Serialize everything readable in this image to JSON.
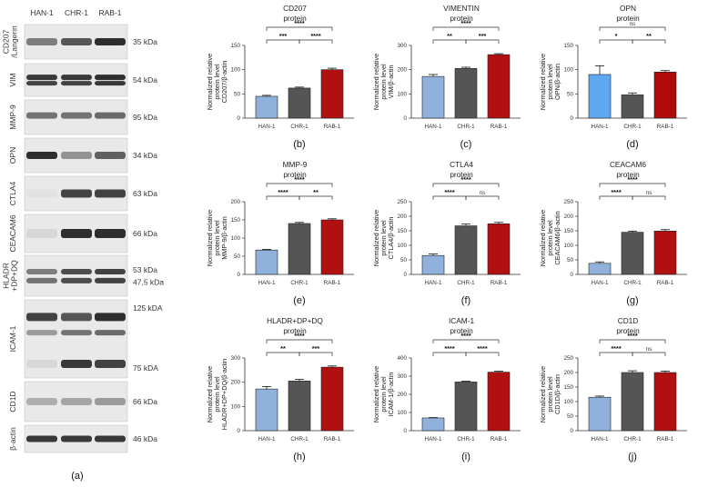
{
  "colors": {
    "HAN-1": "#8fb1dc",
    "CHR-1": "#555555",
    "RAB-1": "#b01010",
    "RAB-1-d": "#ae0a0a",
    "HAN-1-d": "#5fa9f2"
  },
  "blots": {
    "lanes": [
      "HAN-1",
      "CHR-1",
      "RAB-1"
    ],
    "panel_label": "(a)",
    "rows": [
      {
        "label": "CD207\n/Langerin",
        "kda": [
          "35 kDa"
        ]
      },
      {
        "label": "VIM",
        "kda": [
          "54 kDa"
        ]
      },
      {
        "label": "MMP-9",
        "kda": [
          "95 kDa"
        ]
      },
      {
        "label": "OPN",
        "kda": [
          "34 kDa"
        ]
      },
      {
        "label": "CTLA4",
        "kda": [
          "63 kDa"
        ]
      },
      {
        "label": "CEACAM6",
        "kda": [
          "66 kDa"
        ]
      },
      {
        "label": "HLADR\n+DP+DQ",
        "kda": [
          "53 kDa",
          "47,5 kDa"
        ]
      },
      {
        "label": "ICAM-1",
        "kda": [
          "125 kDA",
          "75 kDA"
        ]
      },
      {
        "label": "CD1D",
        "kda": [
          "66 kDa"
        ]
      },
      {
        "label": "β-actin",
        "kda": [
          "46 kDa"
        ]
      }
    ]
  },
  "chart_data": [
    {
      "type": "bar",
      "panel": "(b)",
      "title": [
        "CD207",
        "protein"
      ],
      "ylabel": [
        "Normalized relative",
        "protein level",
        "CD207/β-actin"
      ],
      "categories": [
        "HAN-1",
        "CHR-1",
        "RAB-1"
      ],
      "values": [
        45,
        62,
        100
      ],
      "errors": [
        2,
        2,
        3
      ],
      "ylim": [
        0,
        150
      ],
      "yticks": [
        0,
        50,
        100,
        150
      ],
      "brackets": [
        {
          "from": 0,
          "to": 2,
          "label": "****",
          "level": 2
        },
        {
          "from": 0,
          "to": 1,
          "label": "***",
          "level": 1
        },
        {
          "from": 1,
          "to": 2,
          "label": "****",
          "level": 1
        }
      ]
    },
    {
      "type": "bar",
      "panel": "(c)",
      "title": [
        "VIMENTIN",
        "protein"
      ],
      "ylabel": [
        "Normalized relative",
        "protein level",
        "VIM/β-actin"
      ],
      "categories": [
        "HAN-1",
        "CHR-1",
        "RAB-1"
      ],
      "values": [
        172,
        205,
        262
      ],
      "errors": [
        8,
        5,
        4
      ],
      "ylim": [
        0,
        300
      ],
      "yticks": [
        0,
        100,
        200,
        300
      ],
      "brackets": [
        {
          "from": 0,
          "to": 2,
          "label": "****",
          "level": 2
        },
        {
          "from": 0,
          "to": 1,
          "label": "**",
          "level": 1
        },
        {
          "from": 1,
          "to": 2,
          "label": "***",
          "level": 1
        }
      ]
    },
    {
      "type": "bar",
      "panel": "(d)",
      "title": [
        "OPN",
        "protein"
      ],
      "ylabel": [
        "Normalized relative",
        "protein level",
        "OPN/β-actin"
      ],
      "categories": [
        "HAN-1",
        "CHR-1",
        "RAB-1"
      ],
      "values": [
        90,
        48,
        95
      ],
      "errors": [
        18,
        4,
        3
      ],
      "ylim": [
        0,
        150
      ],
      "yticks": [
        0,
        50,
        100,
        150
      ],
      "alt_colors": true,
      "brackets": [
        {
          "from": 0,
          "to": 2,
          "label": "ns",
          "level": 2
        },
        {
          "from": 0,
          "to": 1,
          "label": "*",
          "level": 1
        },
        {
          "from": 1,
          "to": 2,
          "label": "**",
          "level": 1
        }
      ]
    },
    {
      "type": "bar",
      "panel": "(e)",
      "title": [
        "MMP-9",
        "protein"
      ],
      "ylabel": [
        "Normalized relative",
        "protein level",
        "MMP-9/β-actin"
      ],
      "categories": [
        "HAN-1",
        "CHR-1",
        "RAB-1"
      ],
      "values": [
        67,
        140,
        150
      ],
      "errors": [
        2,
        3,
        3
      ],
      "ylim": [
        0,
        200
      ],
      "yticks": [
        0,
        50,
        100,
        150,
        200
      ],
      "brackets": [
        {
          "from": 0,
          "to": 2,
          "label": "****",
          "level": 2
        },
        {
          "from": 0,
          "to": 1,
          "label": "****",
          "level": 1
        },
        {
          "from": 1,
          "to": 2,
          "label": "**",
          "level": 1
        }
      ]
    },
    {
      "type": "bar",
      "panel": "(f)",
      "title": [
        "CTLA4",
        "protein"
      ],
      "ylabel": [
        "Normalized relative",
        "protein level",
        "CTLA4/β-actin"
      ],
      "categories": [
        "HAN-1",
        "CHR-1",
        "RAB-1"
      ],
      "values": [
        65,
        167,
        174
      ],
      "errors": [
        5,
        6,
        5
      ],
      "ylim": [
        0,
        250
      ],
      "yticks": [
        0,
        50,
        100,
        150,
        200,
        250
      ],
      "brackets": [
        {
          "from": 0,
          "to": 2,
          "label": "****",
          "level": 2
        },
        {
          "from": 0,
          "to": 1,
          "label": "****",
          "level": 1
        },
        {
          "from": 1,
          "to": 2,
          "label": "ns",
          "level": 1
        }
      ]
    },
    {
      "type": "bar",
      "panel": "(g)",
      "title": [
        "CEACAM6",
        "protein"
      ],
      "ylabel": [
        "Normalized relative",
        "protein level",
        "CEACAM6/β-actin"
      ],
      "categories": [
        "HAN-1",
        "CHR-1",
        "RAB-1"
      ],
      "values": [
        38,
        145,
        149
      ],
      "errors": [
        5,
        4,
        5
      ],
      "ylim": [
        0,
        250
      ],
      "yticks": [
        0,
        50,
        100,
        150,
        200,
        250
      ],
      "brackets": [
        {
          "from": 0,
          "to": 2,
          "label": "****",
          "level": 2
        },
        {
          "from": 0,
          "to": 1,
          "label": "****",
          "level": 1
        },
        {
          "from": 1,
          "to": 2,
          "label": "ns",
          "level": 1
        }
      ]
    },
    {
      "type": "bar",
      "panel": "(h)",
      "title": [
        "HLADR+DP+DQ",
        "protein"
      ],
      "ylabel": [
        "Normalized relative",
        "protein level",
        "HLADR+DP+DQ/β-actin"
      ],
      "categories": [
        "HAN-1",
        "CHR-1",
        "RAB-1"
      ],
      "values": [
        172,
        205,
        262
      ],
      "errors": [
        10,
        7,
        5
      ],
      "ylim": [
        0,
        300
      ],
      "yticks": [
        0,
        100,
        200,
        300
      ],
      "brackets": [
        {
          "from": 0,
          "to": 2,
          "label": "****",
          "level": 2
        },
        {
          "from": 0,
          "to": 1,
          "label": "**",
          "level": 1
        },
        {
          "from": 1,
          "to": 2,
          "label": "***",
          "level": 1
        }
      ]
    },
    {
      "type": "bar",
      "panel": "(i)",
      "title": [
        "ICAM-1",
        "protein"
      ],
      "ylabel": [
        "Normalized relative",
        "protein level",
        "ICAM-1/β-actin"
      ],
      "categories": [
        "HAN-1",
        "CHR-1",
        "RAB-1"
      ],
      "values": [
        70,
        268,
        322
      ],
      "errors": [
        2,
        4,
        5
      ],
      "ylim": [
        0,
        400
      ],
      "yticks": [
        0,
        100,
        200,
        300,
        400
      ],
      "brackets": [
        {
          "from": 0,
          "to": 2,
          "label": "****",
          "level": 2
        },
        {
          "from": 0,
          "to": 1,
          "label": "****",
          "level": 1
        },
        {
          "from": 1,
          "to": 2,
          "label": "****",
          "level": 1
        }
      ]
    },
    {
      "type": "bar",
      "panel": "(j)",
      "title": [
        "CD1D",
        "protein"
      ],
      "ylabel": [
        "Normalized relative",
        "protein level",
        "CD1D/β-actin"
      ],
      "categories": [
        "HAN-1",
        "CHR-1",
        "RAB-1"
      ],
      "values": [
        115,
        200,
        200
      ],
      "errors": [
        4,
        6,
        5
      ],
      "ylim": [
        0,
        250
      ],
      "yticks": [
        0,
        50,
        100,
        150,
        200,
        250
      ],
      "brackets": [
        {
          "from": 0,
          "to": 2,
          "label": "****",
          "level": 2
        },
        {
          "from": 0,
          "to": 1,
          "label": "****",
          "level": 1
        },
        {
          "from": 1,
          "to": 2,
          "label": "ns",
          "level": 1
        }
      ]
    }
  ]
}
